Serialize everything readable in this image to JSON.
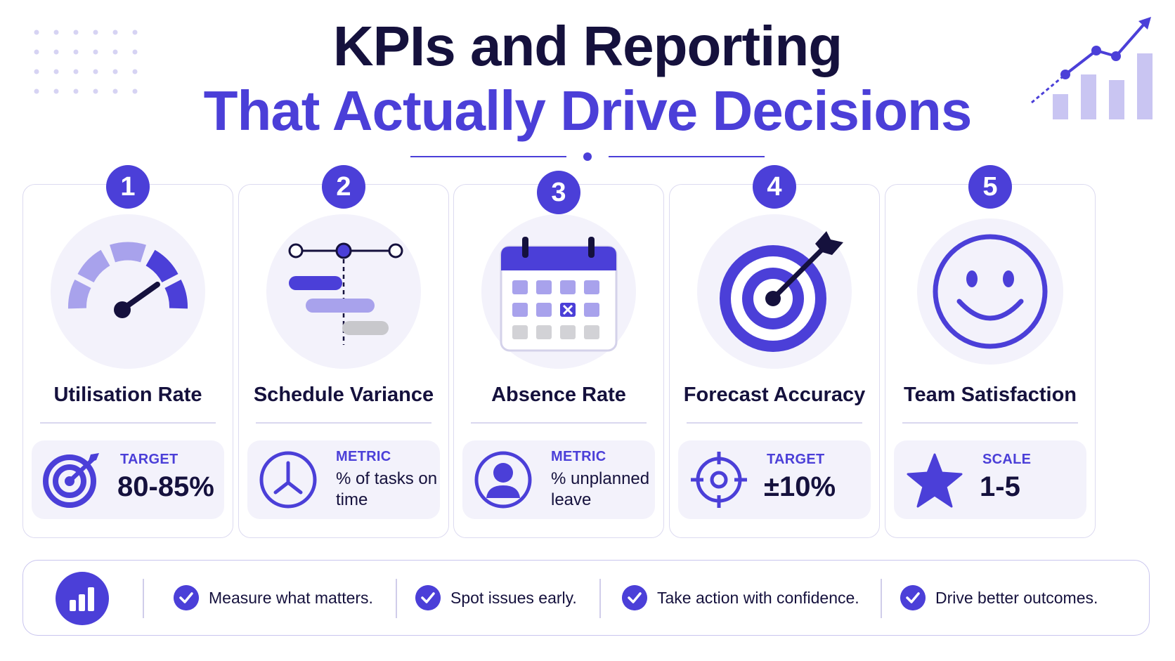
{
  "header": {
    "title_line_1": "KPIs and Reporting",
    "title_line_2": "That Actually Drive Decisions"
  },
  "colors": {
    "accent": "#4b3fd8",
    "accent_light": "#a8a2ec",
    "ink": "#15113d",
    "card_bg": "#f3f2fb",
    "neutral_gray": "#c8c8cc"
  },
  "kpis": [
    {
      "number": "1",
      "name": "Utilisation Rate",
      "illustration": "gauge-icon",
      "stat_label": "TARGET",
      "stat_value": "80-85%",
      "stat_icon": "target-icon"
    },
    {
      "number": "2",
      "name": "Schedule Variance",
      "illustration": "gantt-timeline-icon",
      "stat_label": "METRIC",
      "stat_value": "% of tasks on time",
      "stat_icon": "clock-icon"
    },
    {
      "number": "3",
      "name": "Absence Rate",
      "illustration": "calendar-icon",
      "stat_label": "METRIC",
      "stat_value": "% unplanned leave",
      "stat_icon": "user-icon"
    },
    {
      "number": "4",
      "name": "Forecast Accuracy",
      "illustration": "bullseye-arrow-icon",
      "stat_label": "TARGET",
      "stat_value": "±10%",
      "stat_icon": "crosshair-icon"
    },
    {
      "number": "5",
      "name": "Team Satisfaction",
      "illustration": "smiley-icon",
      "stat_label": "SCALE",
      "stat_value": "1-5",
      "stat_icon": "star-icon"
    }
  ],
  "footer": {
    "icon": "bar-chart-icon",
    "items": [
      "Measure what matters.",
      "Spot issues early.",
      "Take action with confidence.",
      "Drive better outcomes."
    ]
  }
}
